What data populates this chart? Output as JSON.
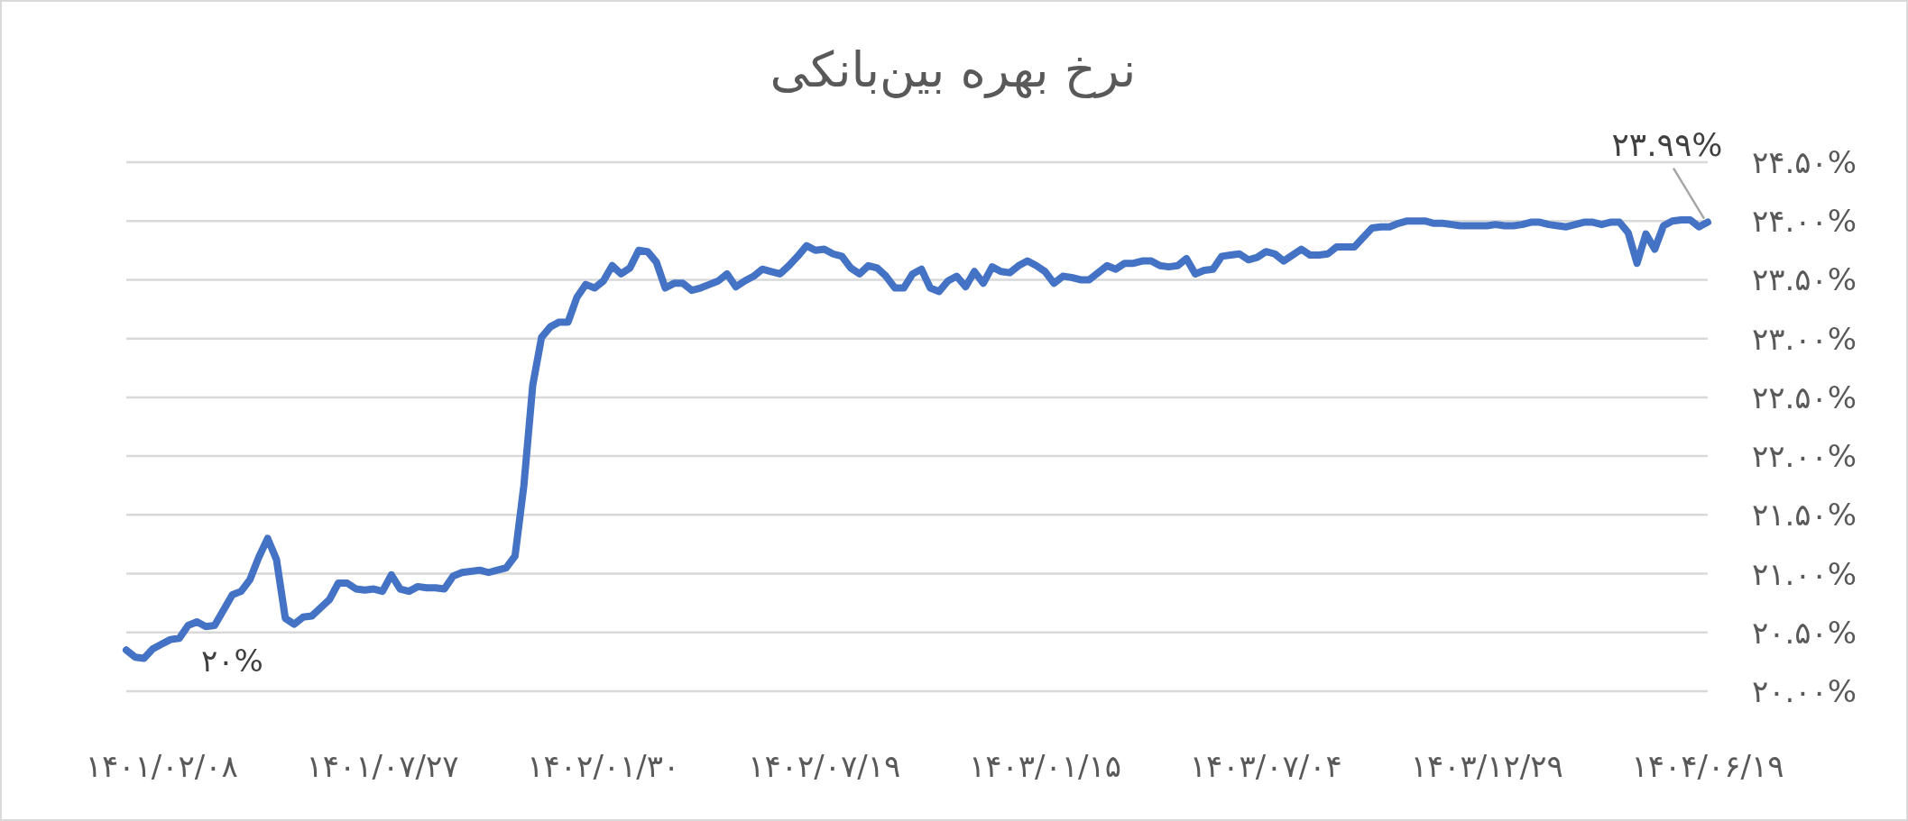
{
  "chart_data": {
    "type": "line",
    "title": "نرخ بهره بین‌بانکی",
    "categories": [
      null,
      null,
      null,
      null,
      "۱۴۰۱/۰۲/۰۸",
      null,
      null,
      null,
      null,
      null,
      null,
      null,
      null,
      null,
      null,
      null,
      null,
      null,
      null,
      null,
      null,
      null,
      null,
      null,
      null,
      null,
      null,
      null,
      null,
      "۱۴۰۱/۰۷/۲۷",
      null,
      null,
      null,
      null,
      null,
      null,
      null,
      null,
      null,
      null,
      null,
      null,
      null,
      null,
      null,
      null,
      null,
      null,
      null,
      null,
      null,
      null,
      null,
      null,
      "۱۴۰۲/۰۱/۳۰",
      null,
      null,
      null,
      null,
      null,
      null,
      null,
      null,
      null,
      null,
      null,
      null,
      null,
      null,
      null,
      null,
      null,
      null,
      null,
      null,
      null,
      null,
      null,
      null,
      "۱۴۰۲/۰۷/۱۹",
      null,
      null,
      null,
      null,
      null,
      null,
      null,
      null,
      null,
      null,
      null,
      null,
      null,
      null,
      null,
      null,
      null,
      null,
      null,
      null,
      null,
      null,
      null,
      null,
      "۱۴۰۳/۰۱/۱۵",
      null,
      null,
      null,
      null,
      null,
      null,
      null,
      null,
      null,
      null,
      null,
      null,
      null,
      null,
      null,
      null,
      null,
      null,
      null,
      null,
      null,
      null,
      null,
      null,
      "۱۴۰۳/۰۷/۰۴",
      null,
      null,
      null,
      null,
      null,
      null,
      null,
      null,
      null,
      null,
      null,
      null,
      null,
      null,
      null,
      null,
      null,
      null,
      null,
      null,
      null,
      null,
      null,
      null,
      "۱۴۰۳/۱۲/۲۹",
      null,
      null,
      null,
      null,
      null,
      null,
      null,
      null,
      null,
      null,
      null,
      null,
      null,
      null,
      null,
      null,
      null,
      null,
      null,
      null,
      null,
      null,
      null,
      null,
      "۱۴۰۴/۰۶/۱۹"
    ],
    "series": [
      {
        "color": "#4472c4",
        "values": [
          20.35,
          20.29,
          20.28,
          20.36,
          20.4,
          20.44,
          20.45,
          20.56,
          20.59,
          20.55,
          20.56,
          20.69,
          20.82,
          20.85,
          20.95,
          21.14,
          21.3,
          21.12,
          20.62,
          20.57,
          20.63,
          20.64,
          20.71,
          20.78,
          20.92,
          20.92,
          20.87,
          20.86,
          20.87,
          20.85,
          20.99,
          20.87,
          20.85,
          20.89,
          20.88,
          20.88,
          20.87,
          20.98,
          21.01,
          21.02,
          21.03,
          21.01,
          21.03,
          21.05,
          21.15,
          21.75,
          22.6,
          23.01,
          23.1,
          23.14,
          23.14,
          23.35,
          23.46,
          23.43,
          23.49,
          23.62,
          23.55,
          23.6,
          23.75,
          23.74,
          23.65,
          23.43,
          23.47,
          23.47,
          23.41,
          23.43,
          23.46,
          23.49,
          23.55,
          23.44,
          23.49,
          23.53,
          23.59,
          23.57,
          23.55,
          23.62,
          23.7,
          23.79,
          23.75,
          23.76,
          23.72,
          23.7,
          23.6,
          23.55,
          23.62,
          23.6,
          23.53,
          23.43,
          23.43,
          23.55,
          23.59,
          23.43,
          23.4,
          23.49,
          23.53,
          23.44,
          23.57,
          23.47,
          23.61,
          23.57,
          23.56,
          23.62,
          23.66,
          23.62,
          23.57,
          23.47,
          23.53,
          23.52,
          23.5,
          23.5,
          23.56,
          23.62,
          23.59,
          23.64,
          23.64,
          23.66,
          23.66,
          23.62,
          23.61,
          23.62,
          23.68,
          23.55,
          23.58,
          23.59,
          23.7,
          23.71,
          23.72,
          23.67,
          23.69,
          23.74,
          23.72,
          23.66,
          23.71,
          23.76,
          23.71,
          23.71,
          23.72,
          23.78,
          23.78,
          23.78,
          23.86,
          23.94,
          23.95,
          23.95,
          23.98,
          24.0,
          24.0,
          24.0,
          23.98,
          23.98,
          23.97,
          23.96,
          23.96,
          23.96,
          23.96,
          23.97,
          23.96,
          23.96,
          23.97,
          23.99,
          23.99,
          23.97,
          23.96,
          23.95,
          23.97,
          23.99,
          23.99,
          23.97,
          23.99,
          23.99,
          23.9,
          23.64,
          23.89,
          23.76,
          23.96,
          24.0,
          24.01,
          24.01,
          23.95,
          23.99
        ]
      }
    ],
    "ylim": [
      20,
      24.5
    ],
    "yticks": [
      {
        "value": 20,
        "label": "۲۰.۰۰%"
      },
      {
        "value": 20.5,
        "label": "۲۰.۵۰%"
      },
      {
        "value": 21,
        "label": "۲۱.۰۰%"
      },
      {
        "value": 21.5,
        "label": "۲۱.۵۰%"
      },
      {
        "value": 22,
        "label": "۲۲.۰۰%"
      },
      {
        "value": 22.5,
        "label": "۲۲.۵۰%"
      },
      {
        "value": 23,
        "label": "۲۳.۰۰%"
      },
      {
        "value": 23.5,
        "label": "۲۳.۵۰%"
      },
      {
        "value": 24,
        "label": "۲۴.۰۰%"
      },
      {
        "value": 24.5,
        "label": "۲۴.۵۰%"
      }
    ],
    "grid": "y",
    "marker": "none",
    "line_style": "solid",
    "annotations": [
      "۲۰%",
      {
        "text": "۲۳.۹۹%",
        "x": "۱۴۰۴/۰۶/۱۹",
        "y": 23.99
      }
    ]
  }
}
